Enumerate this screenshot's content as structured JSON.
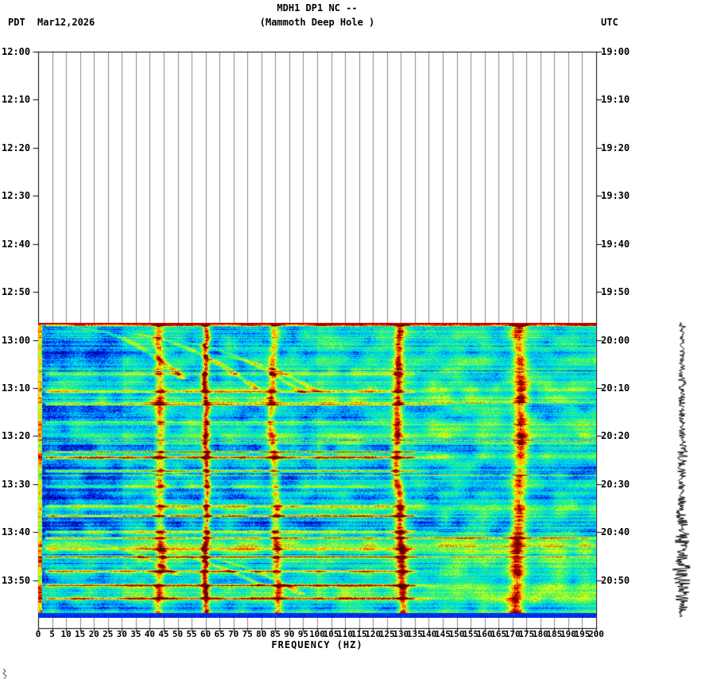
{
  "header": {
    "title": "MDH1 DP1 NC --",
    "subtitle": "(Mammoth Deep Hole )",
    "tz_left": "PDT",
    "date": "Mar12,2026",
    "tz_right": "UTC"
  },
  "chart_data": {
    "type": "heatmap",
    "subtype": "spectrogram",
    "title": "MDH1 DP1 NC -- (Mammoth Deep Hole )",
    "xlabel": "FREQUENCY (HZ)",
    "x_min": 0,
    "x_max": 200,
    "x_tick_step": 5,
    "x_ticks": [
      0,
      5,
      10,
      15,
      20,
      25,
      30,
      35,
      40,
      45,
      50,
      55,
      60,
      65,
      70,
      75,
      80,
      85,
      90,
      95,
      100,
      105,
      110,
      115,
      120,
      125,
      130,
      135,
      140,
      145,
      150,
      155,
      160,
      165,
      170,
      175,
      180,
      185,
      190,
      195,
      200
    ],
    "left_axis_timezone": "PDT",
    "right_axis_timezone": "UTC",
    "left_time_labels": [
      "12:00",
      "12:10",
      "12:20",
      "12:30",
      "12:40",
      "12:50",
      "13:00",
      "13:10",
      "13:20",
      "13:30",
      "13:40",
      "13:50"
    ],
    "right_time_labels": [
      "19:00",
      "19:10",
      "19:20",
      "19:30",
      "19:40",
      "19:50",
      "20:00",
      "20:10",
      "20:20",
      "20:30",
      "20:40",
      "20:50"
    ],
    "row_minutes": 10,
    "total_minutes": 120,
    "data_start_minute": 56.4,
    "data_end_minute": 117.8,
    "grid_color": "#8a8a8a",
    "frame_color": "#000000",
    "palette": [
      [
        0,
        "#000090"
      ],
      [
        0.1,
        "#0010e0"
      ],
      [
        0.2,
        "#0080ff"
      ],
      [
        0.3,
        "#00d0f0"
      ],
      [
        0.38,
        "#00e8d0"
      ],
      [
        0.46,
        "#20f090"
      ],
      [
        0.54,
        "#70f840"
      ],
      [
        0.62,
        "#c0ff20"
      ],
      [
        0.7,
        "#ffff00"
      ],
      [
        0.78,
        "#ffa000"
      ],
      [
        0.86,
        "#ff3000"
      ],
      [
        0.93,
        "#d00000"
      ],
      [
        1,
        "#600000"
      ]
    ],
    "persistent_tones": [
      {
        "hz": 43,
        "strength": 0.42,
        "sigma": 1.2,
        "wander": 2.5
      },
      {
        "hz": 60,
        "strength": 0.6,
        "sigma": 0.9,
        "wander": 0.6
      },
      {
        "hz": 85,
        "strength": 0.42,
        "sigma": 1.1,
        "wander": 2.0
      },
      {
        "hz": 130,
        "strength": 0.52,
        "sigma": 1.2,
        "wander": 2.2
      },
      {
        "hz": 172,
        "strength": 0.5,
        "sigma": 1.8,
        "wander": 3.0
      }
    ],
    "events": [
      [
        56.8,
        200,
        0.55
      ],
      [
        67.0,
        135,
        0.3
      ],
      [
        70.7,
        135,
        0.42
      ],
      [
        73.3,
        140,
        0.45
      ],
      [
        77.0,
        120,
        0.22
      ],
      [
        83.2,
        135,
        0.5
      ],
      [
        84.4,
        135,
        0.5
      ],
      [
        87.2,
        135,
        0.42
      ],
      [
        90.5,
        120,
        0.25
      ],
      [
        94.5,
        130,
        0.3
      ],
      [
        96.5,
        135,
        0.5
      ],
      [
        99.8,
        135,
        0.45
      ],
      [
        101.1,
        200,
        0.5
      ],
      [
        103.4,
        135,
        0.38
      ],
      [
        105.1,
        135,
        0.3
      ],
      [
        108.1,
        135,
        0.45
      ],
      [
        111.0,
        135,
        0.5
      ],
      [
        113.7,
        135,
        0.42
      ]
    ],
    "chirps": [
      [
        57.5,
        68,
        15,
        52,
        0.35
      ],
      [
        58.5,
        70,
        30,
        78,
        0.35
      ],
      [
        60,
        71,
        45,
        95,
        0.3
      ],
      [
        63,
        70.7,
        60,
        100,
        0.28
      ],
      [
        102,
        109,
        15,
        50,
        0.32
      ],
      [
        103,
        111,
        30,
        80,
        0.32
      ],
      [
        104.5,
        113,
        50,
        95,
        0.3
      ],
      [
        84,
        88,
        20,
        50,
        0.2
      ]
    ],
    "bands": [
      [
        63,
        73,
        0.06
      ],
      [
        80,
        86,
        0.04
      ],
      [
        94,
        104,
        0.05
      ],
      [
        105,
        114,
        0.07
      ],
      [
        73.5,
        79,
        -0.05
      ],
      [
        86.5,
        93,
        -0.04
      ],
      [
        58,
        62,
        -0.04
      ],
      [
        114.5,
        117.5,
        0.03
      ]
    ],
    "trace": {
      "color": "#000000",
      "envelope": [
        [
          56.4,
          2
        ],
        [
          56.9,
          13
        ],
        [
          57.5,
          3
        ],
        [
          62,
          3
        ],
        [
          67,
          4
        ],
        [
          71,
          6
        ],
        [
          74,
          4
        ],
        [
          79,
          4
        ],
        [
          83,
          8
        ],
        [
          85,
          7
        ],
        [
          88,
          5
        ],
        [
          92,
          5
        ],
        [
          96,
          9
        ],
        [
          99,
          7
        ],
        [
          101,
          11
        ],
        [
          103,
          8
        ],
        [
          105,
          8
        ],
        [
          108,
          12
        ],
        [
          110,
          12
        ],
        [
          112,
          10
        ],
        [
          114,
          9
        ],
        [
          116,
          7
        ],
        [
          117.8,
          4
        ]
      ]
    }
  }
}
